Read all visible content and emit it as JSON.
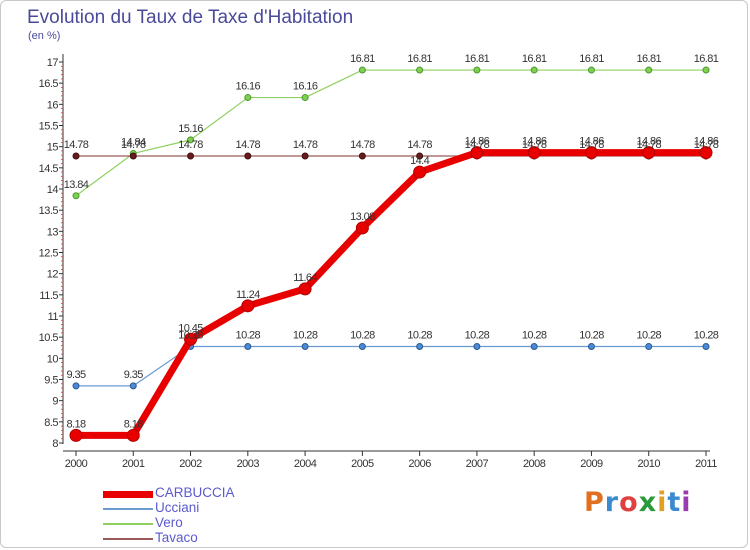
{
  "title": "Evolution du Taux de Taxe d'Habitation",
  "unit_label": "(en %)",
  "logo": {
    "text": "Proxiti",
    "letter_colors": [
      "#e07020",
      "#3a8ad0",
      "#e04040",
      "#2a9a3a",
      "#e0a020",
      "#3a8ad0",
      "#9a3ab0"
    ]
  },
  "chart_data": {
    "type": "line",
    "x": [
      2000,
      2001,
      2002,
      2003,
      2004,
      2005,
      2006,
      2007,
      2008,
      2009,
      2010,
      2011
    ],
    "ylim": [
      8,
      17
    ],
    "yticks": [
      8,
      8.5,
      9,
      9.5,
      10,
      10.5,
      11,
      11.5,
      12,
      12.5,
      13,
      13.5,
      14,
      14.5,
      15,
      15.5,
      16,
      16.5,
      17
    ],
    "grid": false,
    "legend_position": "bottom-left",
    "series": [
      {
        "name": "Ucciani",
        "color": "#6a9ad0",
        "values": [
          9.35,
          9.35,
          10.28,
          10.28,
          10.28,
          10.28,
          10.28,
          10.28,
          10.28,
          10.28,
          10.28,
          10.28
        ],
        "labels": [
          "9.35",
          "9.35",
          "10.28",
          "10.28",
          "10.28",
          "10.28",
          "10.28",
          "10.28",
          "10.28",
          "10.28",
          "10.28",
          "10.28"
        ]
      },
      {
        "name": "Vero",
        "color": "#90d060",
        "values": [
          13.84,
          14.84,
          15.16,
          16.16,
          16.16,
          16.81,
          16.81,
          16.81,
          16.81,
          16.81,
          16.81,
          16.81
        ],
        "labels": [
          "13.84",
          "14.84",
          "15.16",
          "16.16",
          "16.16",
          "16.81",
          "16.81",
          "16.81",
          "16.81",
          "16.81",
          "16.81",
          "16.81"
        ]
      },
      {
        "name": "Tavaco",
        "color": "#9a5a5a",
        "values": [
          14.78,
          14.78,
          14.78,
          14.78,
          14.78,
          14.78,
          14.78,
          14.78,
          14.78,
          14.78,
          14.78,
          14.78
        ],
        "labels": [
          "14.78",
          "14.78",
          "14.78",
          "14.78",
          "14.78",
          "14.78",
          "14.78",
          "14.78",
          "14.78",
          "14.78",
          "14.78",
          "14.78"
        ]
      },
      {
        "name": "CARBUCCIA",
        "color": "#e80000",
        "values": [
          8.18,
          8.18,
          10.45,
          11.24,
          11.64,
          13.08,
          14.4,
          14.86,
          14.86,
          14.86,
          14.86,
          14.86
        ],
        "labels": [
          "8.18",
          "8.18",
          "10.45",
          "11.24",
          "11.64",
          "13.08",
          "14.4",
          "14.86",
          "14.86",
          "14.86",
          "14.86",
          "14.86"
        ]
      }
    ],
    "legend": [
      "CARBUCCIA",
      "Ucciani",
      "Vero",
      "Tavaco"
    ]
  }
}
